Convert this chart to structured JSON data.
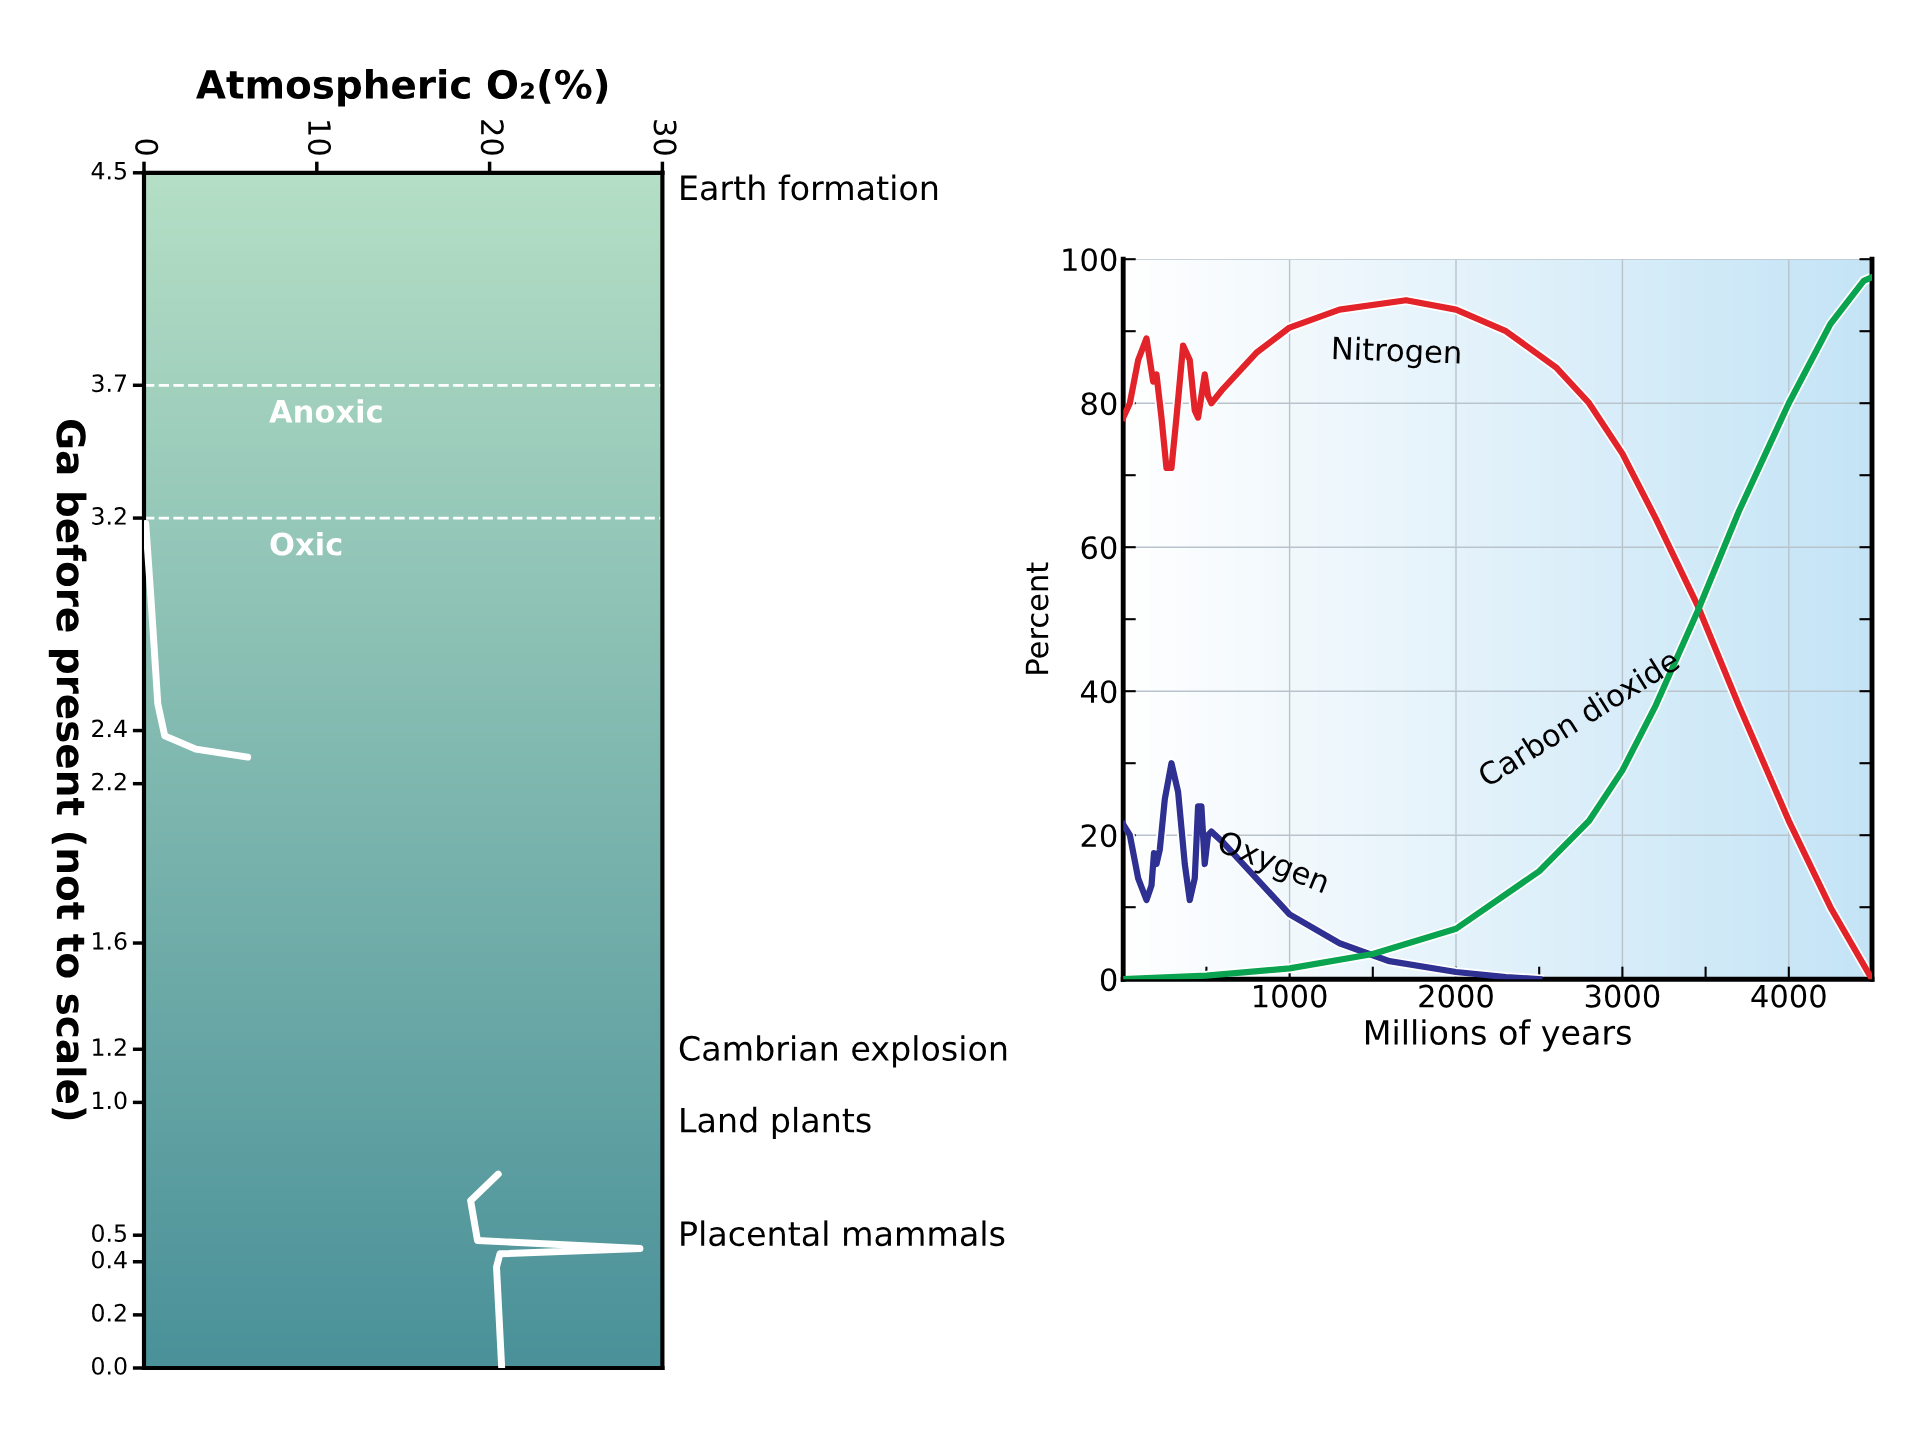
{
  "chart_data": [
    {
      "type": "line",
      "xlabel": "Atmospheric O₂(%)",
      "ylabel": "Ga before present (not to scale)",
      "xlim": [
        0,
        30
      ],
      "xticks": [
        0,
        10,
        20,
        30
      ],
      "ylim": [
        0.0,
        4.5
      ],
      "yticks": [
        4.5,
        3.7,
        3.2,
        2.4,
        2.2,
        1.6,
        1.2,
        {
          "value": 1,
          "label": "1.0"
        },
        0.5,
        0.4,
        0.2,
        {
          "value": 0,
          "label": "0.0"
        }
      ],
      "series": [
        {
          "color": "#ffffff",
          "x": [
            0.1,
            0.4,
            0.8,
            1.2,
            3.0,
            6.0,
            null,
            20.5,
            18.9,
            19.3,
            28.7,
            20.6,
            20.4,
            20.7
          ],
          "values": [
            3.18,
            2.9,
            2.5,
            2.38,
            2.33,
            2.3,
            null,
            0.73,
            0.63,
            0.48,
            0.45,
            0.43,
            0.38,
            0.0
          ]
        }
      ],
      "ref_lines": [
        {
          "axis": "y",
          "value": 3.7,
          "label": "Anoxic",
          "color": "#ffffff",
          "line_style": "dashed"
        },
        {
          "axis": "y",
          "value": 3.2,
          "label": "Oxic",
          "color": "#ffffff",
          "line_style": "dashed"
        }
      ],
      "annotations": [
        "Earth formation",
        "Cambrian explosion",
        "Land plants",
        "Placental mammals"
      ],
      "grid": false
    },
    {
      "type": "line",
      "xlabel": "Millions of years",
      "ylabel": "Percent",
      "xlim": [
        0,
        4500
      ],
      "xticks": [
        {
          "value": 500,
          "label": null
        },
        1000,
        {
          "value": 1500,
          "label": null
        },
        2000,
        {
          "value": 2500,
          "label": null
        },
        3000,
        {
          "value": 3500,
          "label": null
        },
        4000
      ],
      "ylim": [
        0,
        100
      ],
      "yticks": [
        0,
        {
          "value": 10,
          "label": null
        },
        20,
        {
          "value": 30,
          "label": null
        },
        40,
        {
          "value": 50,
          "label": null
        },
        60,
        {
          "value": 70,
          "label": null
        },
        80,
        {
          "value": 90,
          "label": null
        },
        100
      ],
      "series": [
        {
          "color": "#e3232a",
          "x": [
            0,
            40,
            90,
            140,
            160,
            180,
            200,
            230,
            260,
            290,
            320,
            360,
            400,
            430,
            450,
            470,
            490,
            510,
            530,
            600,
            800,
            1000,
            1300,
            1700,
            2000,
            2300,
            2600,
            2800,
            3000,
            3200,
            3450,
            3700,
            4000,
            4250,
            4500
          ],
          "values": [
            78,
            80,
            86,
            89,
            86,
            83,
            84,
            78,
            71,
            71,
            78,
            88,
            86,
            79,
            78,
            81,
            84,
            81,
            80,
            82,
            87,
            90.5,
            93,
            94.3,
            93,
            90,
            85,
            80,
            73,
            64,
            52,
            38,
            22,
            10,
            0
          ]
        },
        {
          "color": "#2e3192",
          "x": [
            0,
            40,
            90,
            140,
            170,
            185,
            200,
            220,
            250,
            290,
            330,
            370,
            400,
            430,
            450,
            470,
            490,
            510,
            530,
            600,
            800,
            1000,
            1300,
            1600,
            2000,
            2300,
            2500
          ],
          "values": [
            21.5,
            20,
            14,
            11,
            13,
            17.5,
            16,
            18,
            25,
            30,
            26,
            16,
            11,
            14,
            24,
            24,
            16,
            20,
            20.5,
            19,
            14,
            9,
            5,
            2.5,
            1,
            0.3,
            0
          ]
        },
        {
          "color": "#0aa450",
          "x": [
            0,
            500,
            1000,
            1500,
            2000,
            2500,
            2800,
            3000,
            3200,
            3450,
            3700,
            4000,
            4250,
            4450,
            4500
          ],
          "values": [
            0,
            0.5,
            1.5,
            3.5,
            7,
            15,
            22,
            29,
            38,
            51,
            65,
            80,
            91,
            97,
            97.5
          ]
        }
      ],
      "annotations": [
        "Nitrogen",
        "Oxygen",
        "Carbon dioxide"
      ],
      "grid": true
    }
  ]
}
